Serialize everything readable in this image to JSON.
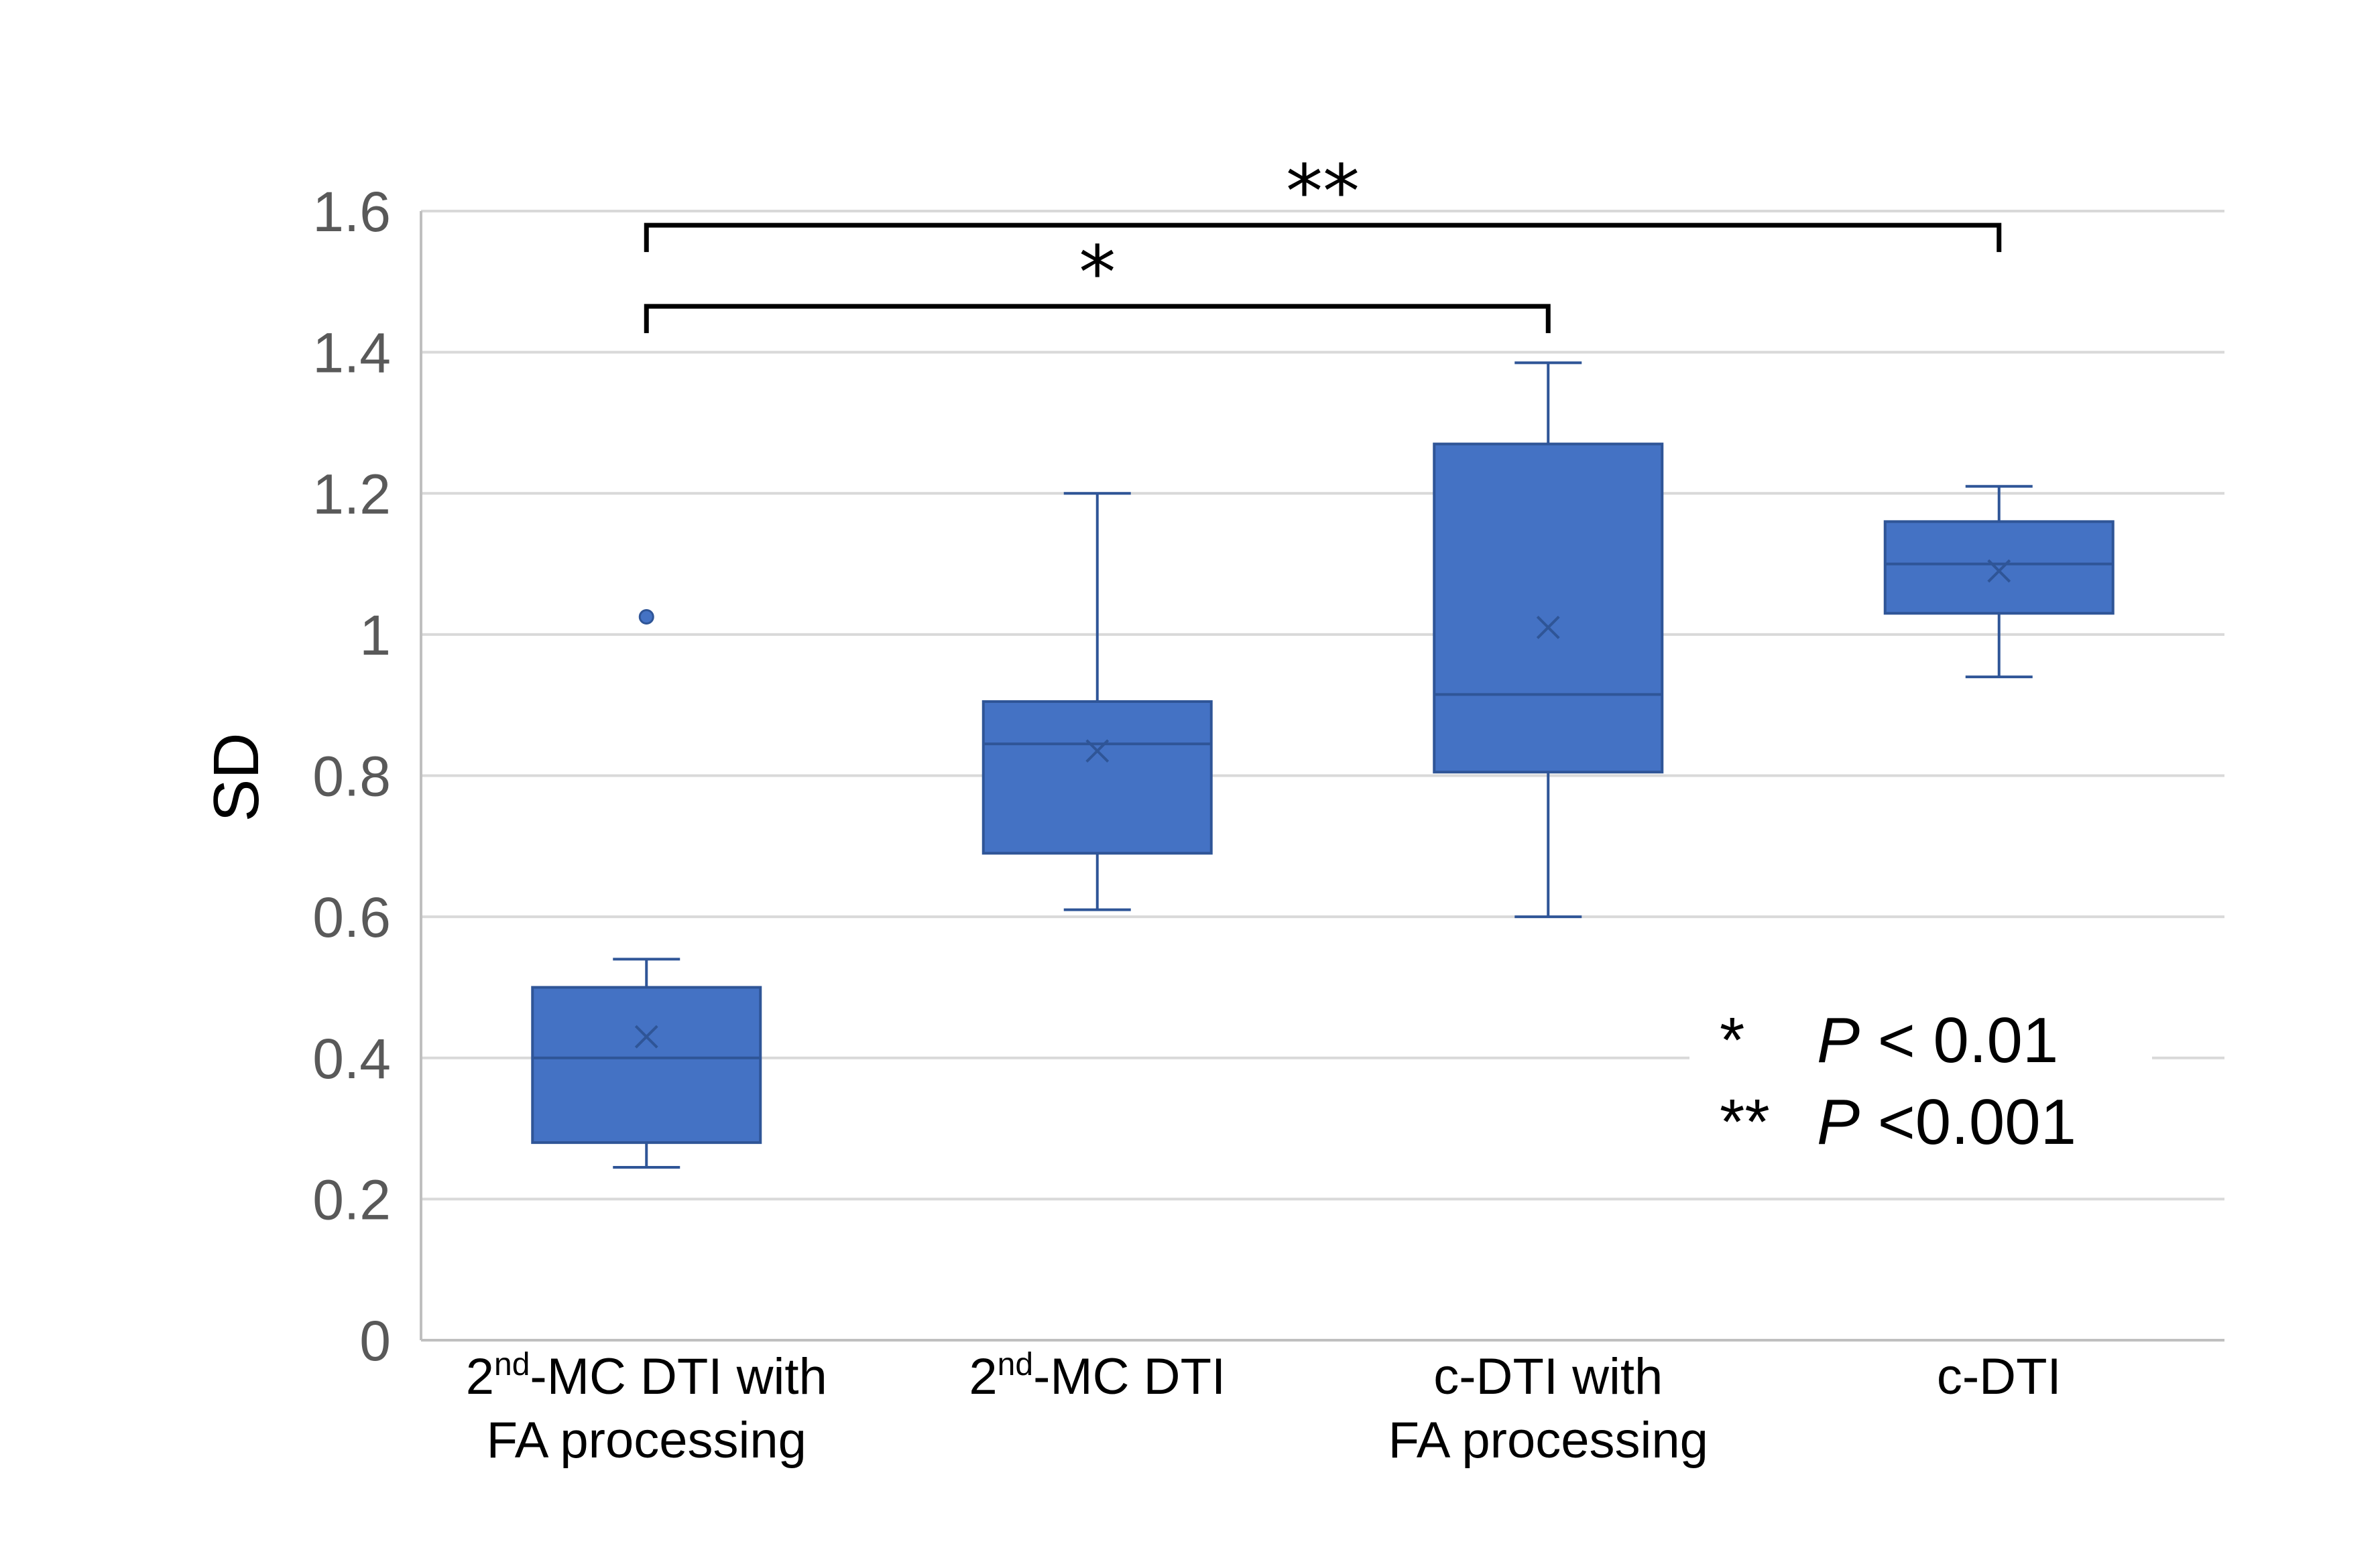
{
  "chart_data": {
    "type": "box",
    "ylabel": "SD",
    "xlabel": "",
    "ylim": [
      0,
      1.6
    ],
    "yticks": [
      "0",
      "0.2",
      "0.4",
      "0.6",
      "0.8",
      "1",
      "1.2",
      "1.4",
      "1.6"
    ],
    "grid": true,
    "colors": {
      "box_fill": "#4472C4",
      "box_edge": "#2F5597",
      "grid": "#D9D9D9",
      "axis": "#BFBFBF"
    },
    "categories": [
      {
        "sup_prefix": "2",
        "sup": "nd",
        "line1_rest": "-MC DTI with",
        "line2": "FA processing"
      },
      {
        "sup_prefix": "2",
        "sup": "nd",
        "line1_rest": "-MC DTI",
        "line2": ""
      },
      {
        "sup_prefix": "",
        "sup": "",
        "line1_rest": "c-DTI with",
        "line2": "FA processing"
      },
      {
        "sup_prefix": "",
        "sup": "",
        "line1_rest": "c-DTI",
        "line2": ""
      }
    ],
    "boxes": [
      {
        "min": 0.245,
        "q1": 0.28,
        "median": 0.4,
        "q3": 0.5,
        "max": 0.54,
        "mean": 0.43,
        "outliers": [
          1.025
        ]
      },
      {
        "min": 0.61,
        "q1": 0.69,
        "median": 0.845,
        "q3": 0.905,
        "max": 1.2,
        "mean": 0.835,
        "outliers": []
      },
      {
        "min": 0.6,
        "q1": 0.805,
        "median": 0.915,
        "q3": 1.27,
        "max": 1.385,
        "mean": 1.01,
        "outliers": []
      },
      {
        "min": 0.94,
        "q1": 1.03,
        "median": 1.1,
        "q3": 1.16,
        "max": 1.21,
        "mean": 1.09,
        "outliers": []
      }
    ],
    "significance": [
      {
        "from": 0,
        "to": 2,
        "y": 1.465,
        "label": "*"
      },
      {
        "from": 0,
        "to": 3,
        "y": 1.58,
        "label": "**"
      }
    ],
    "legend": [
      {
        "stars": "*",
        "p": "P",
        "text": "< 0.01"
      },
      {
        "stars": "**",
        "p": "P",
        "text": "<0.001"
      }
    ]
  }
}
